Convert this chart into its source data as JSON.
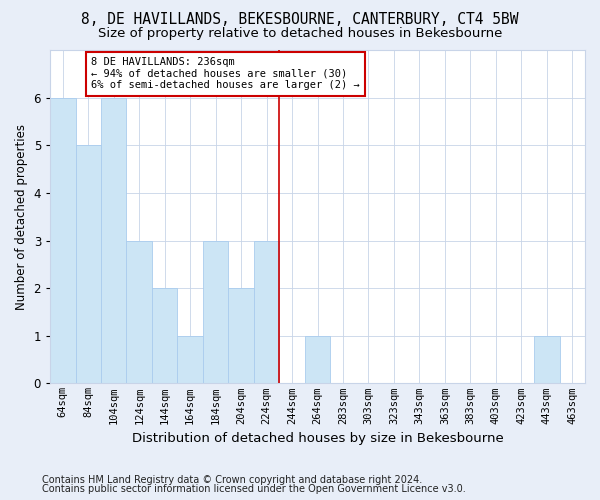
{
  "title": "8, DE HAVILLANDS, BEKESBOURNE, CANTERBURY, CT4 5BW",
  "subtitle": "Size of property relative to detached houses in Bekesbourne",
  "xlabel": "Distribution of detached houses by size in Bekesbourne",
  "ylabel": "Number of detached properties",
  "footnote1": "Contains HM Land Registry data © Crown copyright and database right 2024.",
  "footnote2": "Contains public sector information licensed under the Open Government Licence v3.0.",
  "categories": [
    "64sqm",
    "84sqm",
    "104sqm",
    "124sqm",
    "144sqm",
    "164sqm",
    "184sqm",
    "204sqm",
    "224sqm",
    "244sqm",
    "264sqm",
    "283sqm",
    "303sqm",
    "323sqm",
    "343sqm",
    "363sqm",
    "383sqm",
    "403sqm",
    "423sqm",
    "443sqm",
    "463sqm"
  ],
  "values": [
    6,
    5,
    6,
    3,
    2,
    1,
    3,
    2,
    3,
    0,
    1,
    0,
    0,
    0,
    0,
    0,
    0,
    0,
    0,
    1,
    0
  ],
  "bar_color": "#cce5f5",
  "bar_edge_color": "#aaccee",
  "vline_color": "#cc0000",
  "vline_x": 8.5,
  "annotation_text": "8 DE HAVILLANDS: 236sqm\n← 94% of detached houses are smaller (30)\n6% of semi-detached houses are larger (2) →",
  "annotation_box_color": "#cc0000",
  "ylim": [
    0,
    7
  ],
  "yticks": [
    0,
    1,
    2,
    3,
    4,
    5,
    6
  ],
  "background_color": "#e8eef8",
  "plot_background": "#ffffff",
  "grid_color": "#c8d4e8",
  "title_fontsize": 10.5,
  "subtitle_fontsize": 9.5,
  "xlabel_fontsize": 9.5,
  "ylabel_fontsize": 8.5,
  "tick_fontsize": 7.5,
  "annotation_fontsize": 7.5,
  "footnote_fontsize": 7.0
}
